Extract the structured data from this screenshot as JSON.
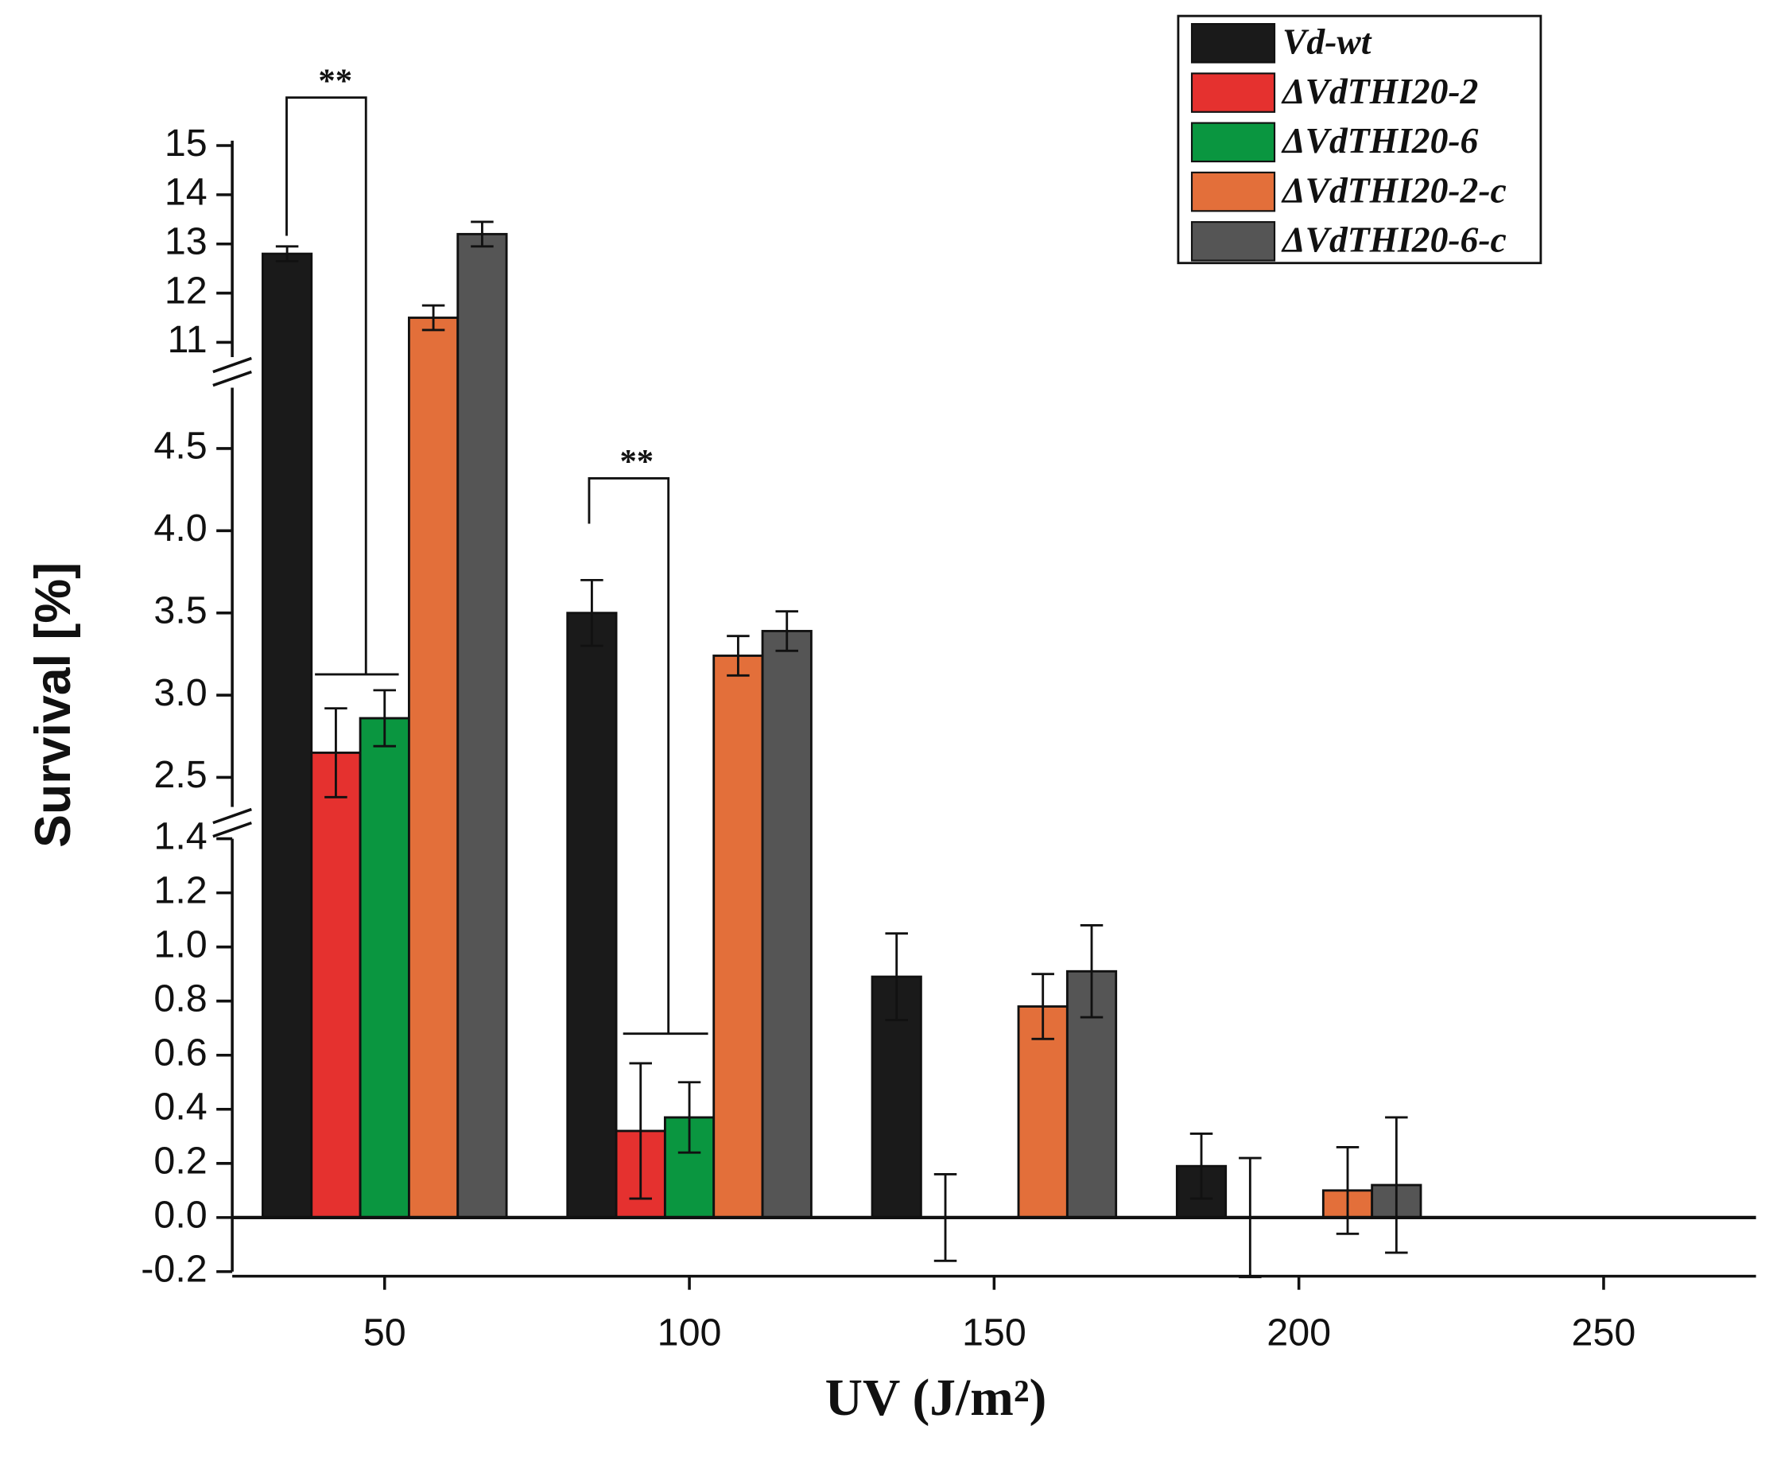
{
  "chart_data": {
    "type": "bar",
    "x_title": "UV (J/m²)",
    "y_title": "Survival [%]",
    "x": [
      50,
      100,
      150,
      200
    ],
    "xlim": [
      25,
      275
    ],
    "xticks": [
      50,
      100,
      150,
      200,
      250
    ],
    "series": [
      {
        "name": "Vd-wt",
        "color": "#1a1a1a",
        "values": [
          12.8,
          3.5,
          0.89,
          0.19
        ],
        "errors": [
          0.15,
          0.2,
          0.16,
          0.12
        ]
      },
      {
        "name": "ΔVdTHI20-2",
        "color": "#e5312f",
        "values": [
          2.65,
          0.32,
          0,
          0
        ],
        "errors": [
          0.27,
          0.25,
          0.16,
          0.22
        ]
      },
      {
        "name": "ΔVdTHI20-6",
        "color": "#0a9640",
        "values": [
          2.86,
          0.37,
          null,
          null
        ],
        "errors": [
          0.17,
          0.13,
          null,
          null
        ]
      },
      {
        "name": "ΔVdTHI20-2-c",
        "color": "#e36f3a",
        "values": [
          11.5,
          3.24,
          0.78,
          0.1
        ],
        "errors": [
          0.25,
          0.12,
          0.12,
          0.16
        ]
      },
      {
        "name": "ΔVdTHI20-6-c",
        "color": "#555555",
        "values": [
          13.2,
          3.39,
          0.91,
          0.12
        ],
        "errors": [
          0.25,
          0.12,
          0.17,
          0.25
        ]
      }
    ],
    "y_segments": [
      {
        "ylim": [
          -0.2,
          1.4
        ],
        "yticks": [
          -0.2,
          {
            "value": 0,
            "label": "0.0"
          },
          0.2,
          0.4,
          0.6,
          0.8,
          {
            "value": 1,
            "label": "1.0"
          },
          1.2,
          1.4
        ]
      },
      {
        "ylim": [
          2.32,
          4.87
        ],
        "yticks": [
          2.5,
          {
            "value": 3,
            "label": "3.0"
          },
          3.5,
          {
            "value": 4,
            "label": "4.0"
          },
          4.5
        ]
      },
      {
        "ylim": [
          10.7,
          15.1
        ],
        "yticks": [
          11,
          12,
          13,
          14,
          15
        ]
      }
    ],
    "annotations": [
      "**",
      "**"
    ],
    "legend": "upper right"
  }
}
